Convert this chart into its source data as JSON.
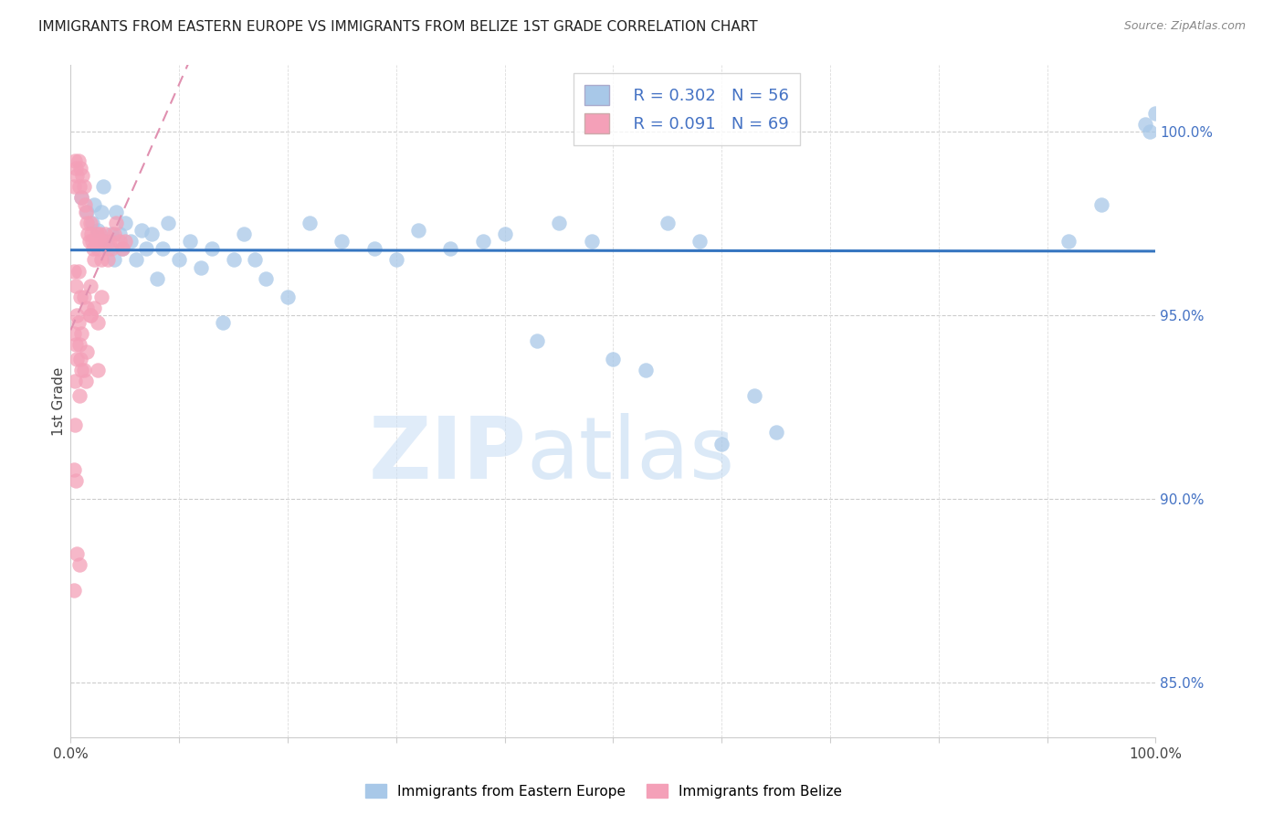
{
  "title": "IMMIGRANTS FROM EASTERN EUROPE VS IMMIGRANTS FROM BELIZE 1ST GRADE CORRELATION CHART",
  "source": "Source: ZipAtlas.com",
  "ylabel": "1st Grade",
  "yticks": [
    85.0,
    90.0,
    95.0,
    100.0
  ],
  "xlim": [
    0.0,
    1.0
  ],
  "ylim": [
    83.5,
    101.8
  ],
  "legend_blue_r": "R = 0.302",
  "legend_blue_n": "N = 56",
  "legend_pink_r": "R = 0.091",
  "legend_pink_n": "N = 69",
  "blue_color": "#a8c8e8",
  "pink_color": "#f4a0b8",
  "blue_line_color": "#3575c0",
  "pink_line_color": "#e090b0",
  "watermark_zip": "ZIP",
  "watermark_atlas": "atlas",
  "blue_x": [
    0.01,
    0.015,
    0.02,
    0.022,
    0.025,
    0.028,
    0.03,
    0.032,
    0.035,
    0.038,
    0.04,
    0.042,
    0.045,
    0.048,
    0.05,
    0.055,
    0.06,
    0.065,
    0.07,
    0.075,
    0.08,
    0.085,
    0.09,
    0.1,
    0.11,
    0.12,
    0.13,
    0.14,
    0.15,
    0.16,
    0.17,
    0.18,
    0.2,
    0.22,
    0.25,
    0.28,
    0.3,
    0.32,
    0.35,
    0.38,
    0.4,
    0.43,
    0.45,
    0.48,
    0.5,
    0.53,
    0.55,
    0.58,
    0.6,
    0.63,
    0.65,
    0.92,
    0.95,
    0.99,
    0.995,
    1.0
  ],
  "blue_y": [
    98.2,
    97.8,
    97.5,
    98.0,
    97.3,
    97.8,
    98.5,
    97.0,
    96.8,
    97.2,
    96.5,
    97.8,
    97.2,
    96.8,
    97.5,
    97.0,
    96.5,
    97.3,
    96.8,
    97.2,
    96.0,
    96.8,
    97.5,
    96.5,
    97.0,
    96.3,
    96.8,
    94.8,
    96.5,
    97.2,
    96.5,
    96.0,
    95.5,
    97.5,
    97.0,
    96.8,
    96.5,
    97.3,
    96.8,
    97.0,
    97.2,
    94.3,
    97.5,
    97.0,
    93.8,
    93.5,
    97.5,
    97.0,
    91.5,
    92.8,
    91.8,
    97.0,
    98.0,
    100.2,
    100.0,
    100.5
  ],
  "pink_x": [
    0.003,
    0.004,
    0.005,
    0.006,
    0.007,
    0.008,
    0.009,
    0.01,
    0.011,
    0.012,
    0.013,
    0.014,
    0.015,
    0.016,
    0.017,
    0.018,
    0.019,
    0.02,
    0.021,
    0.022,
    0.023,
    0.024,
    0.025,
    0.026,
    0.027,
    0.028,
    0.03,
    0.032,
    0.034,
    0.036,
    0.038,
    0.04,
    0.042,
    0.045,
    0.048,
    0.05,
    0.003,
    0.005,
    0.007,
    0.009,
    0.012,
    0.015,
    0.018,
    0.022,
    0.025,
    0.028,
    0.003,
    0.005,
    0.006,
    0.007,
    0.008,
    0.009,
    0.01,
    0.012,
    0.015,
    0.018,
    0.004,
    0.006,
    0.008,
    0.01,
    0.014,
    0.018,
    0.025,
    0.003,
    0.005,
    0.006,
    0.008,
    0.003,
    0.004
  ],
  "pink_y": [
    98.5,
    99.2,
    99.0,
    98.8,
    99.2,
    98.5,
    99.0,
    98.2,
    98.8,
    98.5,
    98.0,
    97.8,
    97.5,
    97.2,
    97.0,
    97.5,
    97.2,
    97.0,
    96.8,
    96.5,
    97.0,
    97.2,
    96.8,
    97.0,
    97.2,
    96.5,
    97.0,
    97.2,
    96.5,
    97.0,
    96.8,
    97.2,
    97.5,
    97.0,
    96.8,
    97.0,
    96.2,
    95.8,
    96.2,
    95.5,
    95.5,
    95.2,
    95.8,
    95.2,
    94.8,
    95.5,
    94.5,
    94.2,
    95.0,
    94.8,
    94.2,
    93.8,
    94.5,
    93.5,
    94.0,
    95.0,
    93.2,
    93.8,
    92.8,
    93.5,
    93.2,
    95.0,
    93.5,
    90.8,
    90.5,
    88.5,
    88.2,
    87.5,
    92.0
  ]
}
